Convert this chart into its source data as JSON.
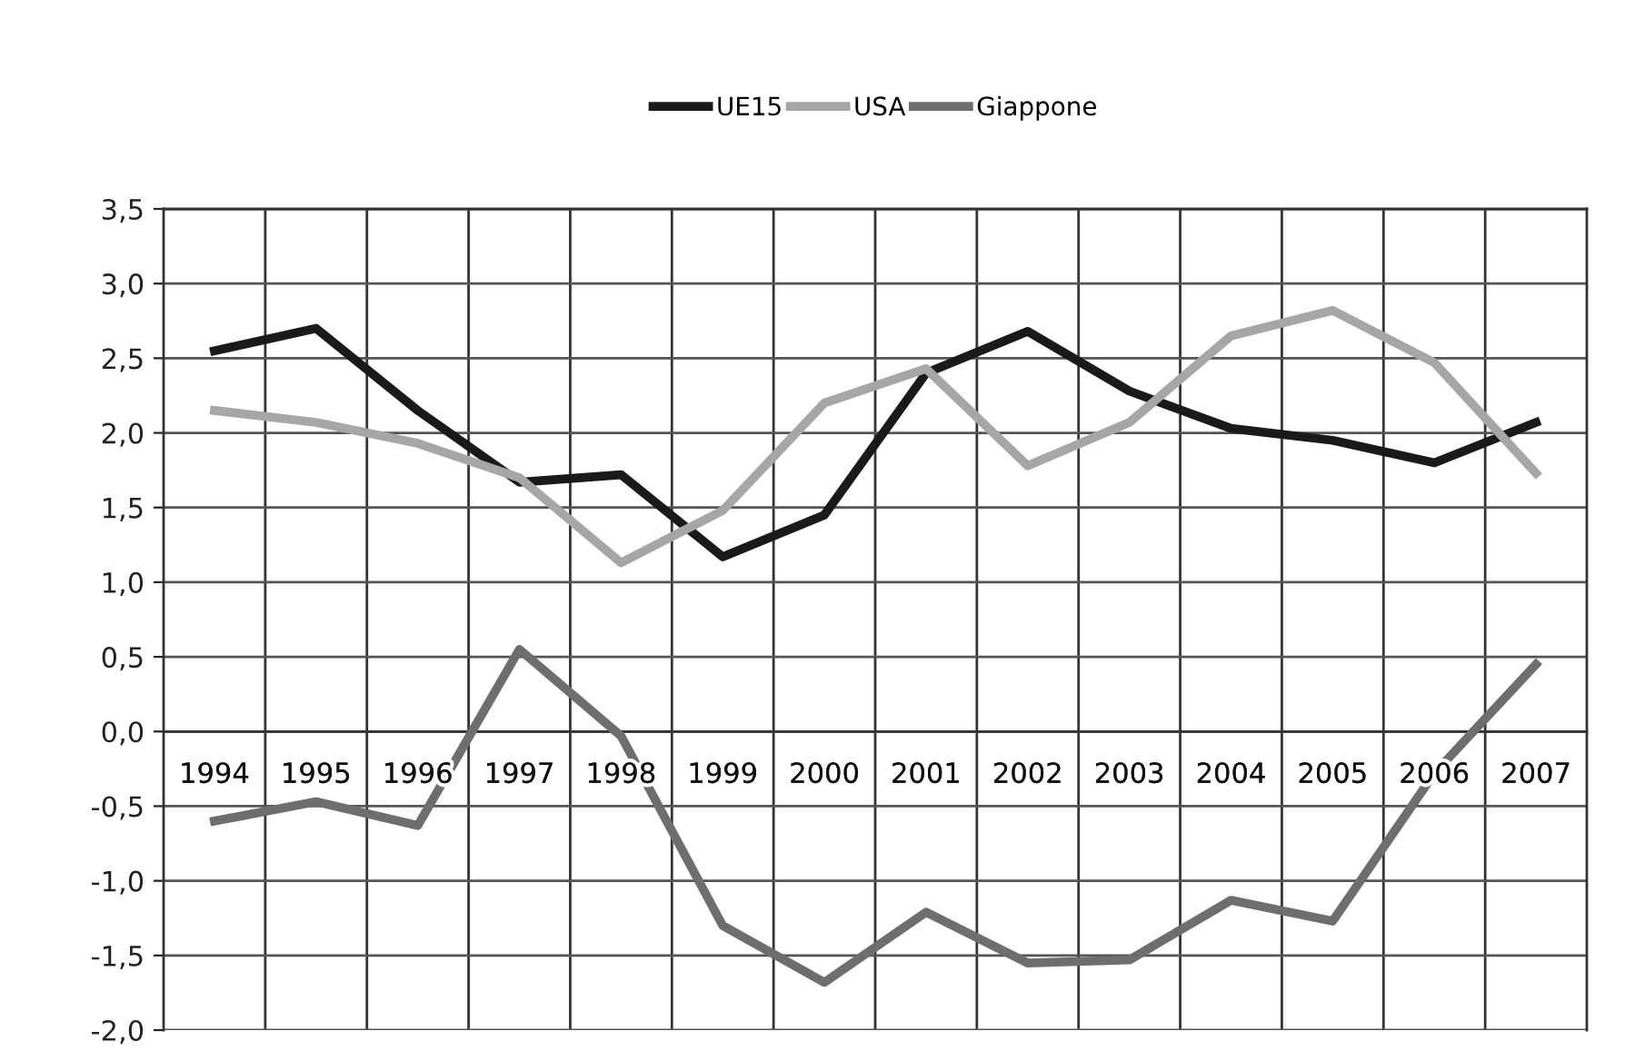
{
  "chart_data": {
    "type": "line",
    "categories": [
      "1994",
      "1995",
      "1996",
      "1997",
      "1998",
      "1999",
      "2000",
      "2001",
      "2002",
      "2003",
      "2004",
      "2005",
      "2006",
      "2007"
    ],
    "series": [
      {
        "name": "UE15",
        "color": "#1a1a1a",
        "values": [
          2.55,
          2.7,
          2.15,
          1.67,
          1.72,
          1.17,
          1.45,
          2.4,
          2.68,
          2.28,
          2.03,
          1.95,
          1.8,
          2.07
        ]
      },
      {
        "name": "USA",
        "color": "#a6a6a6",
        "values": [
          2.15,
          2.07,
          1.93,
          1.7,
          1.13,
          1.48,
          2.2,
          2.43,
          1.78,
          2.07,
          2.65,
          2.82,
          2.47,
          1.73
        ]
      },
      {
        "name": "Giappone",
        "color": "#6e6e6e",
        "values": [
          -0.6,
          -0.47,
          -0.63,
          0.55,
          -0.03,
          -1.3,
          -1.68,
          -1.21,
          -1.55,
          -1.53,
          -1.13,
          -1.27,
          -0.28,
          0.45
        ]
      }
    ],
    "ylim": [
      -2.0,
      3.5
    ],
    "yticks": [
      {
        "value": -2.0,
        "label": "-2,0"
      },
      {
        "value": -1.5,
        "label": "-1,5"
      },
      {
        "value": -1.0,
        "label": "-1,0"
      },
      {
        "value": -0.5,
        "label": "-0,5"
      },
      {
        "value": 0.0,
        "label": "0,0"
      },
      {
        "value": 0.5,
        "label": "0,5"
      },
      {
        "value": 1.0,
        "label": "1,0"
      },
      {
        "value": 1.5,
        "label": "1,5"
      },
      {
        "value": 2.0,
        "label": "2,0"
      },
      {
        "value": 2.5,
        "label": "2,5"
      },
      {
        "value": 3.0,
        "label": "3,0"
      },
      {
        "value": 3.5,
        "label": "3,5"
      }
    ],
    "grid": true,
    "legend": "top",
    "marker": "none",
    "line_style": "solid"
  }
}
